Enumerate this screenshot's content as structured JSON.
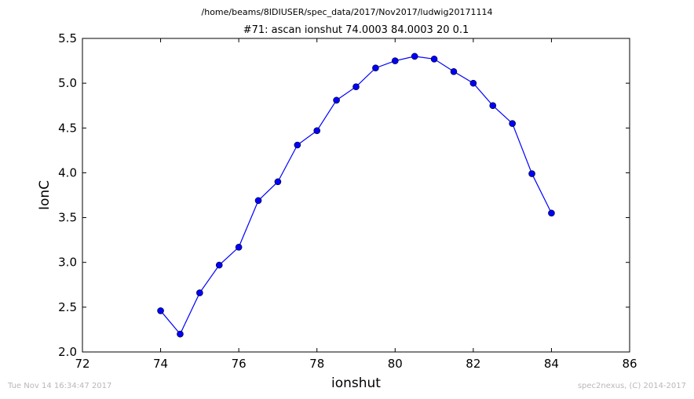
{
  "header": {
    "file_path": "/home/beams/8IDIUSER/spec_data/2017/Nov2017/ludwig20171114"
  },
  "footer": {
    "timestamp": "Tue Nov 14 16:34:47 2017",
    "credit": "spec2nexus, (C) 2014-2017"
  },
  "chart_data": {
    "type": "line",
    "title": "#71: ascan  ionshut 74.0003 84.0003  20 0.1",
    "xlabel": "ionshut",
    "ylabel": "IonC",
    "xlim": [
      72,
      86
    ],
    "ylim": [
      2.0,
      5.5
    ],
    "xticks": [
      "72",
      "74",
      "76",
      "78",
      "80",
      "82",
      "84",
      "86"
    ],
    "yticks": [
      "2.0",
      "2.5",
      "3.0",
      "3.5",
      "4.0",
      "4.5",
      "5.0",
      "5.5"
    ],
    "grid": false,
    "series": [
      {
        "color": "#0000ff",
        "marker": "circle",
        "x": [
          74.0,
          74.5,
          75.0,
          75.5,
          76.0,
          76.5,
          77.0,
          77.5,
          78.0,
          78.5,
          79.0,
          79.5,
          80.0,
          80.5,
          81.0,
          81.5,
          82.0,
          82.5,
          83.0,
          83.5,
          84.0
        ],
        "y": [
          2.46,
          2.2,
          2.66,
          2.97,
          3.17,
          3.69,
          3.9,
          4.31,
          4.47,
          4.81,
          4.96,
          5.17,
          5.25,
          5.3,
          5.27,
          5.13,
          5.0,
          4.75,
          4.55,
          3.99,
          3.55
        ]
      }
    ]
  }
}
